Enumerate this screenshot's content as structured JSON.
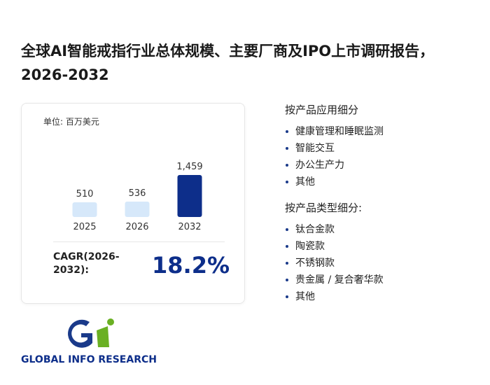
{
  "header": {
    "title": "全球AI智能戒指行业总体规模、主要厂商及IPO上市调研报告，2026-2032"
  },
  "chart_data": {
    "type": "bar",
    "unit": "单位: 百万美元",
    "categories": [
      "2025",
      "2026",
      "2032"
    ],
    "values": [
      510,
      536,
      1459
    ],
    "value_labels": [
      "510",
      "536",
      "1,459"
    ],
    "colors": [
      "#d6e8fa",
      "#d6e8fa",
      "#0d2e8a"
    ]
  },
  "cagr": {
    "label": "CAGR(2026-2032):",
    "value": "18.2%"
  },
  "segments": [
    {
      "heading": "按产品应用细分",
      "items": [
        "健康管理和睡眠监测",
        "智能交互",
        "办公生产力",
        "其他"
      ]
    },
    {
      "heading": "按产品类型细分:",
      "items": [
        "钛合金款",
        "陶瓷款",
        "不锈钢款",
        "贵金属 / 复合奢华款",
        "其他"
      ]
    }
  ],
  "logo": {
    "text": "GLOBAL INFO RESEARCH"
  }
}
